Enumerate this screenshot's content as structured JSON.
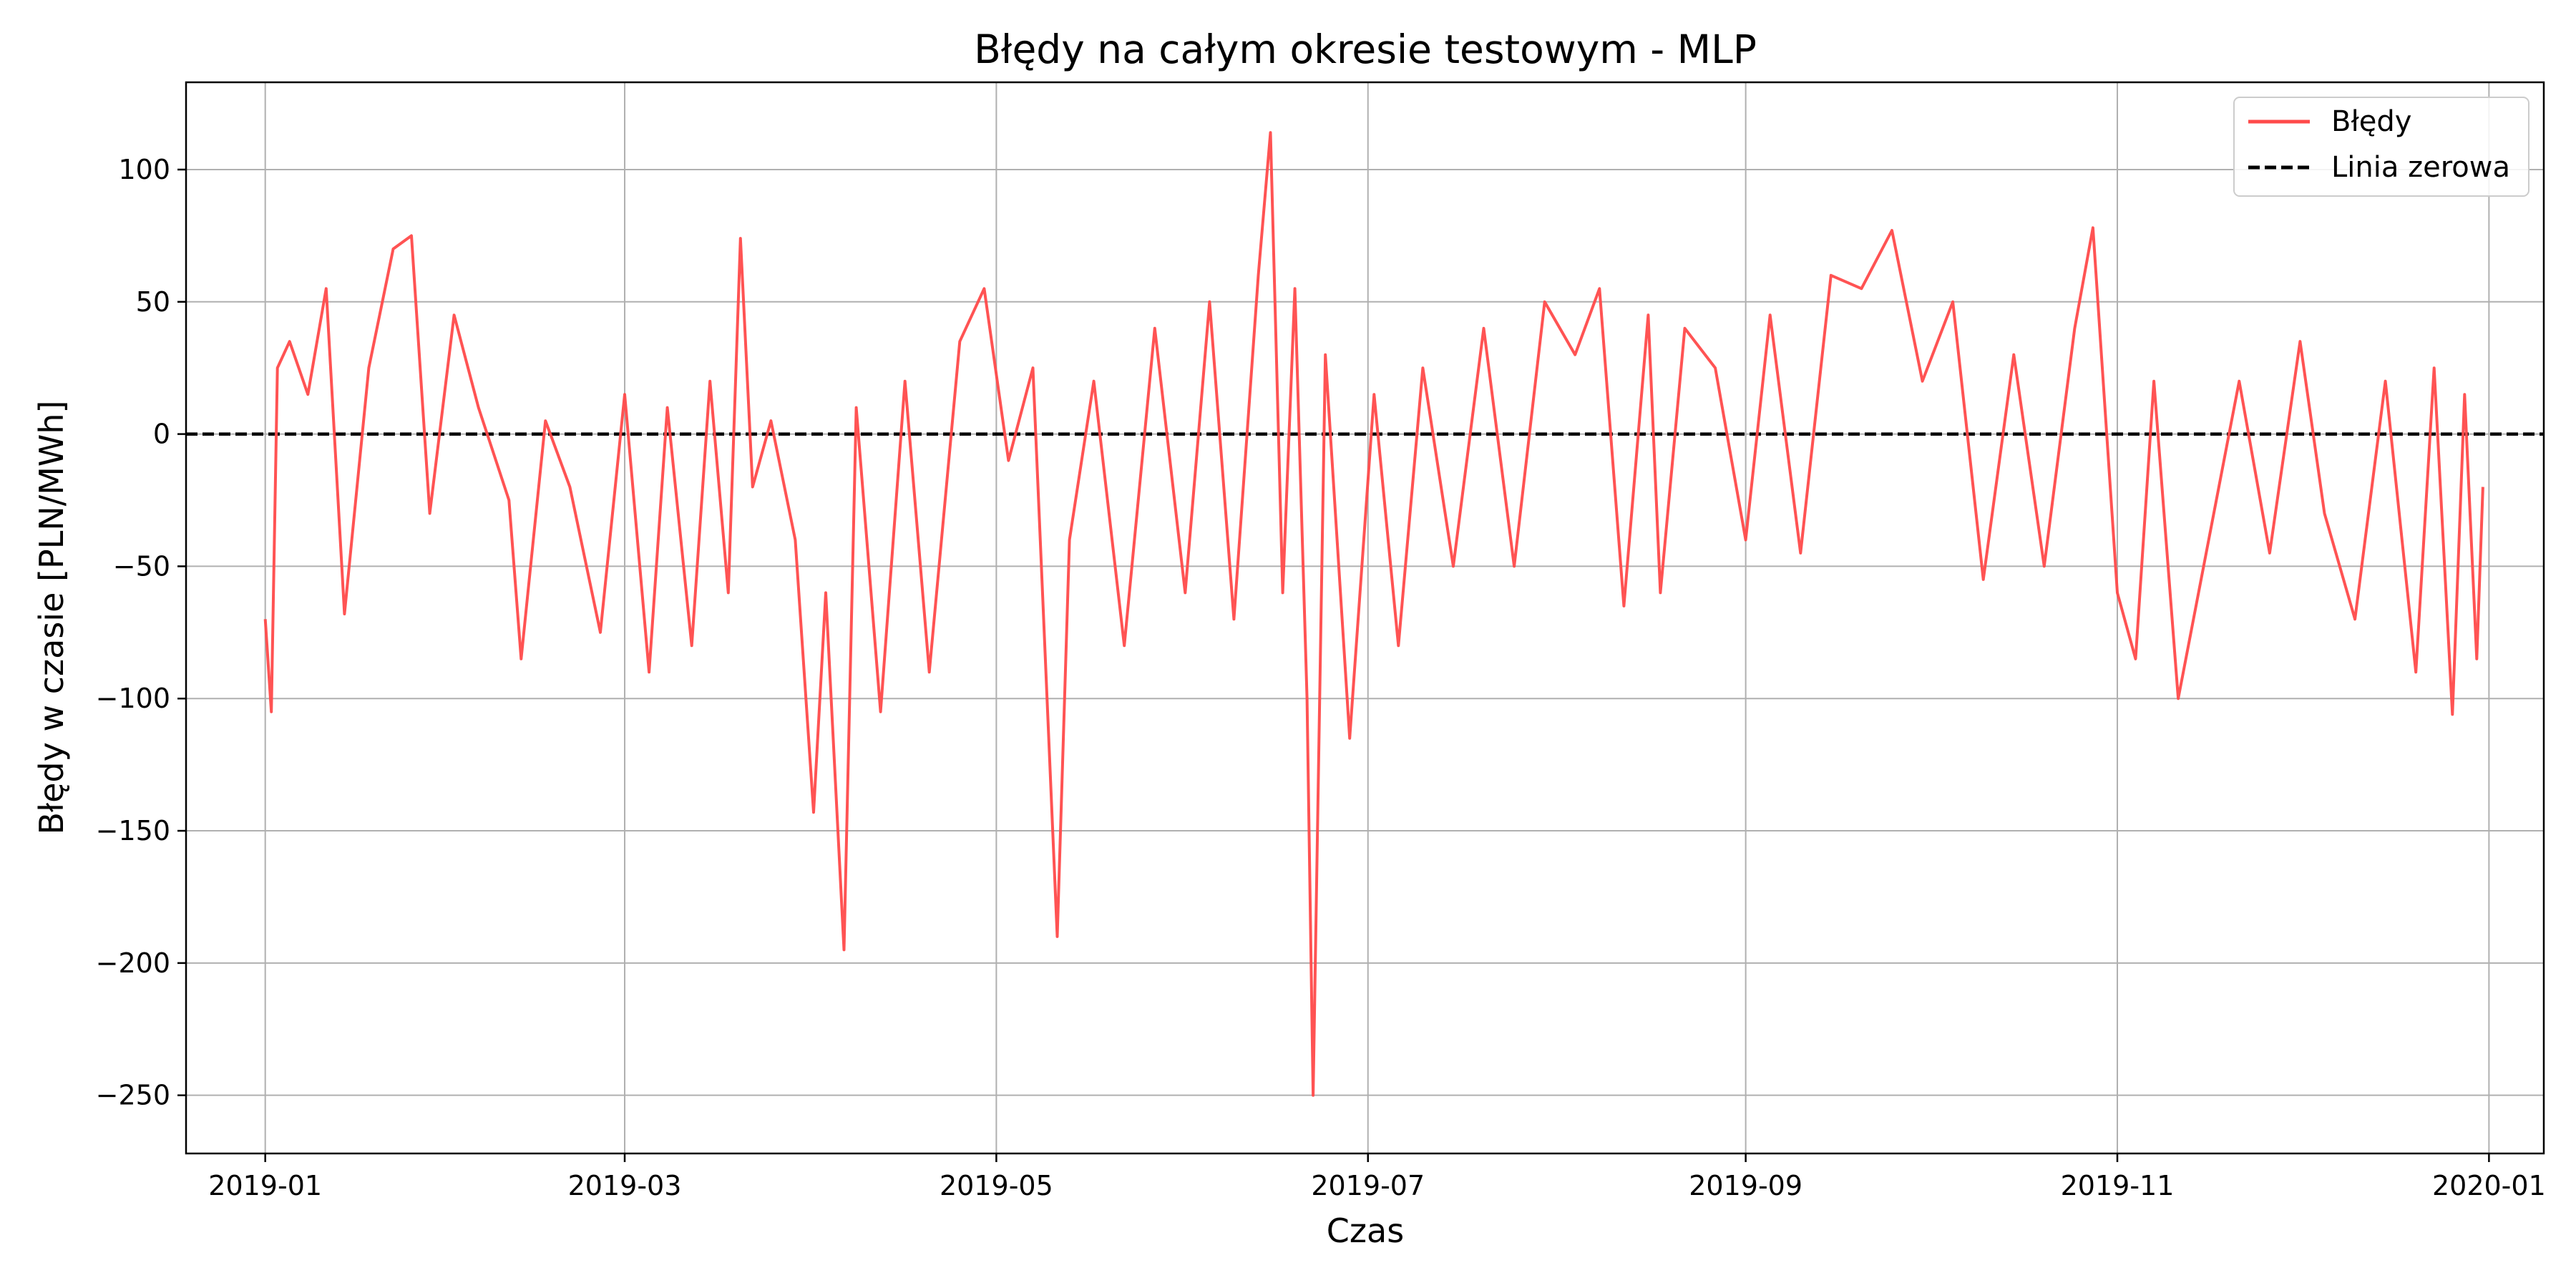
{
  "chart_data": {
    "type": "line",
    "title": "Błędy na całym okresie testowym - MLP",
    "xlabel": "Czas",
    "ylabel": "Błędy w czasie [PLN/MWh]",
    "x_range": [
      "2018-12-19",
      "2020-01-10"
    ],
    "ylim": [
      -272,
      133
    ],
    "x_ticks": [
      "2019-01",
      "2019-03",
      "2019-05",
      "2019-07",
      "2019-09",
      "2019-11",
      "2020-01"
    ],
    "y_ticks": [
      100,
      50,
      0,
      -50,
      -100,
      -150,
      -200,
      -250
    ],
    "y_tick_labels": [
      "100",
      "50",
      "0",
      "−50",
      "−100",
      "−150",
      "−200",
      "−250"
    ],
    "grid": true,
    "legend_position": "upper right",
    "series": [
      {
        "name": "Błędy",
        "color": "#ff4a4a",
        "style": "solid",
        "x": [
          "2019-01-01",
          "2019-01-02",
          "2019-01-03",
          "2019-01-05",
          "2019-01-08",
          "2019-01-11",
          "2019-01-14",
          "2019-01-18",
          "2019-01-22",
          "2019-01-25",
          "2019-01-28",
          "2019-02-01",
          "2019-02-05",
          "2019-02-10",
          "2019-02-12",
          "2019-02-16",
          "2019-02-20",
          "2019-02-25",
          "2019-03-01",
          "2019-03-05",
          "2019-03-08",
          "2019-03-12",
          "2019-03-15",
          "2019-03-18",
          "2019-03-20",
          "2019-03-22",
          "2019-03-25",
          "2019-03-29",
          "2019-04-01",
          "2019-04-03",
          "2019-04-06",
          "2019-04-08",
          "2019-04-12",
          "2019-04-16",
          "2019-04-20",
          "2019-04-25",
          "2019-04-29",
          "2019-05-03",
          "2019-05-07",
          "2019-05-11",
          "2019-05-13",
          "2019-05-17",
          "2019-05-22",
          "2019-05-27",
          "2019-06-01",
          "2019-06-05",
          "2019-06-09",
          "2019-06-13",
          "2019-06-15",
          "2019-06-17",
          "2019-06-19",
          "2019-06-21",
          "2019-06-22",
          "2019-06-24",
          "2019-06-28",
          "2019-07-02",
          "2019-07-06",
          "2019-07-10",
          "2019-07-15",
          "2019-07-20",
          "2019-07-25",
          "2019-07-30",
          "2019-08-04",
          "2019-08-08",
          "2019-08-12",
          "2019-08-16",
          "2019-08-18",
          "2019-08-22",
          "2019-08-27",
          "2019-09-01",
          "2019-09-05",
          "2019-09-10",
          "2019-09-15",
          "2019-09-20",
          "2019-09-25",
          "2019-09-30",
          "2019-10-05",
          "2019-10-10",
          "2019-10-15",
          "2019-10-20",
          "2019-10-25",
          "2019-10-28",
          "2019-11-01",
          "2019-11-04",
          "2019-11-07",
          "2019-11-11",
          "2019-11-16",
          "2019-11-21",
          "2019-11-26",
          "2019-12-01",
          "2019-12-05",
          "2019-12-10",
          "2019-12-15",
          "2019-12-20",
          "2019-12-23",
          "2019-12-26",
          "2019-12-28",
          "2019-12-30",
          "2019-12-31"
        ],
        "y": [
          -70,
          -105,
          25,
          35,
          15,
          55,
          -68,
          25,
          70,
          75,
          -30,
          45,
          10,
          -25,
          -85,
          5,
          -20,
          -75,
          15,
          -90,
          10,
          -80,
          20,
          -60,
          74,
          -20,
          5,
          -40,
          -143,
          -60,
          -195,
          10,
          -105,
          20,
          -90,
          35,
          55,
          -10,
          25,
          -190,
          -40,
          20,
          -80,
          40,
          -60,
          50,
          -70,
          60,
          114,
          -60,
          55,
          -100,
          -250,
          30,
          -115,
          15,
          -80,
          25,
          -50,
          40,
          -50,
          50,
          30,
          55,
          -65,
          45,
          -60,
          40,
          25,
          -40,
          45,
          -45,
          60,
          55,
          77,
          20,
          50,
          -55,
          30,
          -50,
          40,
          78,
          -60,
          -85,
          20,
          -100,
          -40,
          20,
          -45,
          35,
          -30,
          -70,
          20,
          -90,
          25,
          -106,
          15,
          -85,
          -20
        ]
      },
      {
        "name": "Linia zerowa",
        "color": "#000000",
        "style": "dashed",
        "value": 0
      }
    ]
  }
}
